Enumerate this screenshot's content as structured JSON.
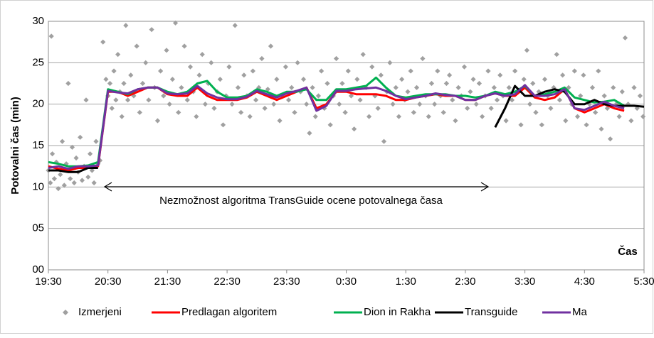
{
  "chart_data": {
    "type": "line",
    "y_label": "Potovalni čas (min)",
    "x_label": "Čas",
    "annotation": "Nezmožnost algoritma TransGuide ocene potovalnega časa",
    "xlim": [
      0,
      600
    ],
    "xticks": [
      {
        "value": 0,
        "label": "19:30"
      },
      {
        "value": 60,
        "label": "20:30"
      },
      {
        "value": 120,
        "label": "21:30"
      },
      {
        "value": 180,
        "label": "22:30"
      },
      {
        "value": 240,
        "label": "23:30"
      },
      {
        "value": 300,
        "label": "0:30"
      },
      {
        "value": 360,
        "label": "1:30"
      },
      {
        "value": 420,
        "label": "2:30"
      },
      {
        "value": 480,
        "label": "3:30"
      },
      {
        "value": 540,
        "label": "4:30"
      },
      {
        "value": 600,
        "label": "5:30"
      }
    ],
    "ylim": [
      0,
      30
    ],
    "yticks": [
      {
        "value": 0,
        "label": "00"
      },
      {
        "value": 5,
        "label": "05"
      },
      10,
      15,
      20,
      25,
      30
    ],
    "grid": true,
    "legend": "bottom",
    "series": [
      {
        "name": "Izmerjeni",
        "type": "scatter",
        "color": "#a0a0a0",
        "x": [
          0,
          2,
          3,
          4,
          6,
          8,
          10,
          12,
          14,
          16,
          18,
          20,
          22,
          24,
          26,
          28,
          30,
          32,
          34,
          36,
          38,
          40,
          42,
          44,
          46,
          48,
          50,
          52,
          55,
          58,
          60,
          62,
          64,
          66,
          68,
          70,
          72,
          74,
          76,
          78,
          80,
          83,
          86,
          89,
          92,
          95,
          98,
          101,
          104,
          107,
          110,
          113,
          116,
          119,
          122,
          125,
          128,
          131,
          134,
          137,
          140,
          143,
          146,
          149,
          152,
          155,
          158,
          161,
          164,
          167,
          170,
          173,
          176,
          179,
          182,
          185,
          188,
          191,
          194,
          197,
          200,
          203,
          206,
          209,
          212,
          215,
          218,
          221,
          224,
          227,
          230,
          233,
          236,
          239,
          242,
          245,
          248,
          251,
          254,
          257,
          260,
          263,
          266,
          269,
          272,
          275,
          278,
          281,
          284,
          287,
          290,
          293,
          296,
          299,
          302,
          305,
          308,
          311,
          314,
          317,
          320,
          323,
          326,
          329,
          332,
          335,
          338,
          341,
          344,
          347,
          350,
          353,
          356,
          359,
          362,
          365,
          368,
          371,
          374,
          377,
          380,
          383,
          386,
          389,
          392,
          395,
          398,
          401,
          404,
          407,
          410,
          413,
          416,
          419,
          422,
          425,
          428,
          431,
          434,
          437,
          440,
          443,
          446,
          449,
          452,
          455,
          458,
          461,
          464,
          467,
          470,
          473,
          476,
          479,
          482,
          485,
          488,
          491,
          494,
          497,
          500,
          503,
          506,
          509,
          512,
          515,
          518,
          521,
          524,
          527,
          530,
          533,
          536,
          539,
          542,
          545,
          548,
          551,
          554,
          557,
          560,
          563,
          566,
          569,
          572,
          575,
          578,
          581,
          584,
          587,
          590,
          593,
          596,
          599
        ],
        "values": [
          12,
          10.5,
          28.2,
          14,
          11,
          13,
          9.8,
          11.5,
          15.5,
          10.2,
          12.8,
          22.5,
          11,
          14.8,
          10.5,
          13.5,
          11.8,
          16,
          10.8,
          12.5,
          20.5,
          11.2,
          14,
          12,
          10.5,
          15.5,
          12.8,
          13.2,
          27.5,
          23,
          21,
          22.5,
          19.5,
          24,
          20.5,
          26,
          21.5,
          18.5,
          22.5,
          29.5,
          20.5,
          23.5,
          21,
          27,
          19,
          22.5,
          25,
          20.5,
          29,
          22,
          18,
          24,
          21,
          26.5,
          20,
          23,
          29.8,
          19,
          22,
          27,
          20.5,
          24.5,
          21.5,
          18.5,
          23.5,
          26,
          20,
          22.5,
          25,
          19.5,
          21.5,
          23,
          17.5,
          21,
          24.5,
          20,
          29.5,
          22,
          19,
          23.5,
          21,
          18.5,
          24,
          20.5,
          22,
          25.5,
          19.5,
          21.8,
          27,
          20,
          23,
          18,
          21,
          24.5,
          20.5,
          22,
          19,
          25,
          21.5,
          23,
          20,
          16.5,
          22,
          18.5,
          21,
          24,
          19.5,
          22.5,
          17.5,
          21,
          25.5,
          20,
          22.5,
          19,
          24,
          21,
          17,
          23,
          20.5,
          26,
          22,
          18.5,
          24.5,
          21,
          19.5,
          23.5,
          15.5,
          21.5,
          25,
          20,
          22,
          18.5,
          23,
          20.5,
          21.5,
          24,
          19,
          22,
          20,
          25.5,
          21,
          18.5,
          22.5,
          20,
          24,
          21,
          19,
          22.5,
          23.5,
          20.5,
          18,
          22,
          21,
          24.5,
          19.5,
          21.5,
          23,
          20,
          22.5,
          18.5,
          21,
          24,
          19.5,
          22,
          20.5,
          23.5,
          21,
          18,
          22,
          20.5,
          24,
          21.5,
          17.5,
          23,
          26.5,
          20,
          22.5,
          19,
          21.5,
          17.5,
          23,
          21,
          19.5,
          22,
          26,
          20.5,
          23.5,
          18,
          22,
          20,
          24,
          18.5,
          21,
          23.5,
          17.5,
          20,
          22,
          19,
          24,
          17,
          21,
          19.5,
          15.8,
          22,
          20,
          18.5,
          21.5,
          28,
          20,
          18,
          22,
          19.5,
          21,
          18.5
        ]
      },
      {
        "name": "Predlagan algoritem",
        "color": "#ff0000",
        "x": [
          0,
          10,
          20,
          30,
          40,
          50,
          60,
          70,
          80,
          90,
          100,
          110,
          120,
          130,
          140,
          150,
          160,
          170,
          180,
          190,
          200,
          210,
          220,
          230,
          240,
          250,
          260,
          270,
          280,
          290,
          300,
          310,
          320,
          330,
          340,
          350,
          360,
          370,
          380,
          390,
          400,
          410,
          420,
          430,
          440,
          450,
          460,
          470,
          480,
          490,
          500,
          510,
          520,
          530,
          540,
          550,
          560,
          570,
          580
        ],
        "values": [
          12.5,
          12.2,
          12,
          12.3,
          12.3,
          12.5,
          21.5,
          21.5,
          21,
          21.5,
          22,
          22,
          21.2,
          21,
          21,
          22,
          21,
          20.5,
          20.5,
          20.5,
          20.8,
          21.5,
          21,
          20.5,
          21,
          21.5,
          22,
          19.5,
          20,
          21.5,
          21.5,
          21.2,
          21.2,
          21.2,
          21,
          20.5,
          20.5,
          20.8,
          21,
          21.2,
          21,
          21,
          20.5,
          20.5,
          21,
          21.3,
          21,
          21,
          22,
          20.8,
          20.5,
          20.8,
          21.8,
          19.5,
          19,
          19.5,
          20,
          19.5,
          19.2
        ]
      },
      {
        "name": "Dion in Rakha",
        "color": "#00b050",
        "x": [
          0,
          10,
          20,
          30,
          40,
          50,
          60,
          70,
          80,
          90,
          100,
          110,
          120,
          130,
          140,
          150,
          160,
          170,
          180,
          190,
          200,
          210,
          220,
          230,
          240,
          250,
          260,
          270,
          280,
          290,
          300,
          310,
          320,
          330,
          340,
          350,
          360,
          370,
          380,
          390,
          400,
          410,
          420,
          430,
          440,
          450,
          460,
          470,
          480,
          490,
          500,
          510,
          520,
          530,
          540,
          550,
          560,
          570,
          580
        ],
        "values": [
          13,
          12.8,
          12.5,
          12.5,
          12.6,
          13,
          21.8,
          21.5,
          21.2,
          21.8,
          22,
          22,
          21.5,
          21.2,
          21.5,
          22.5,
          22.8,
          21.5,
          20.8,
          20.8,
          21,
          21.8,
          21.5,
          21,
          21.5,
          21.5,
          21.8,
          20.5,
          20.5,
          21.8,
          21.8,
          22,
          22.2,
          23.2,
          22,
          21,
          20.8,
          21,
          21.2,
          21.2,
          21.2,
          21,
          21,
          20.8,
          21,
          21.5,
          21.2,
          21.5,
          22.2,
          21,
          21.2,
          21.5,
          22,
          20.8,
          20.5,
          20.2,
          20.3,
          20.5,
          19.8
        ]
      },
      {
        "name": "Transguide",
        "color": "#000000",
        "x": [
          0,
          10,
          20,
          30,
          40,
          50,
          60,
          70,
          80,
          90,
          100,
          110,
          120,
          130,
          140,
          150,
          160,
          170,
          180,
          190,
          200,
          210,
          220,
          230,
          240,
          250,
          260,
          270,
          280,
          290,
          300,
          310,
          320,
          330,
          340,
          350,
          360,
          370,
          380,
          390,
          400,
          410,
          420,
          430,
          440,
          450,
          460,
          470,
          480,
          490,
          500,
          510,
          520,
          530,
          540,
          550,
          560,
          570,
          580,
          590,
          600
        ],
        "values": [
          12,
          12,
          11.8,
          11.8,
          12.3,
          12.3,
          null,
          null,
          null,
          null,
          null,
          null,
          null,
          null,
          null,
          null,
          null,
          null,
          null,
          null,
          null,
          null,
          null,
          null,
          null,
          null,
          null,
          null,
          null,
          null,
          null,
          null,
          null,
          null,
          null,
          null,
          null,
          null,
          null,
          null,
          null,
          null,
          null,
          null,
          null,
          17.2,
          19.5,
          22.2,
          21,
          21,
          21.5,
          21.8,
          21.5,
          20,
          20,
          20.5,
          20,
          19.8,
          19.8,
          19.8,
          19.7
        ]
      },
      {
        "name": "Ma",
        "color": "#7030a0",
        "x": [
          0,
          10,
          20,
          30,
          40,
          50,
          60,
          70,
          80,
          90,
          100,
          110,
          120,
          130,
          140,
          150,
          160,
          170,
          180,
          190,
          200,
          210,
          220,
          230,
          240,
          250,
          260,
          270,
          280,
          290,
          300,
          310,
          320,
          330,
          340,
          350,
          360,
          370,
          380,
          390,
          400,
          410,
          420,
          430,
          440,
          450,
          460,
          470,
          480,
          490,
          500,
          510,
          520,
          530,
          540,
          550,
          560,
          570,
          580
        ],
        "values": [
          12.3,
          12.5,
          12.2,
          12.5,
          12.5,
          12.6,
          21.6,
          21.4,
          21.3,
          21.8,
          22,
          22,
          21.3,
          21.2,
          21.3,
          22.2,
          21.3,
          20.8,
          20.6,
          20.6,
          20.9,
          21.6,
          21.2,
          20.8,
          21.3,
          21.6,
          22,
          19.2,
          19.8,
          21.6,
          21.6,
          21.8,
          21.9,
          22,
          21.6,
          21,
          20.6,
          20.8,
          21,
          21.3,
          21.1,
          21,
          20.5,
          20.5,
          21,
          21.3,
          21,
          21.2,
          22.3,
          21,
          21,
          21.2,
          21.8,
          19.5,
          19.3,
          19.8,
          20.3,
          19.8,
          19.5
        ]
      }
    ]
  }
}
